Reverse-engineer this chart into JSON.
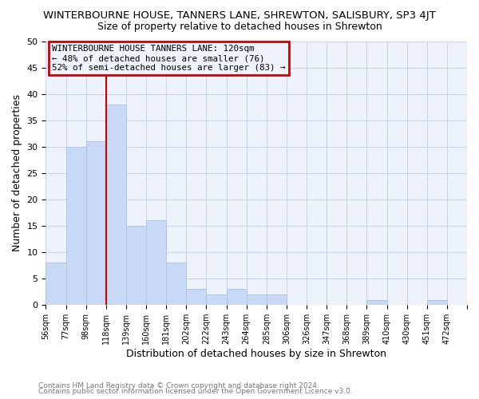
{
  "title": "WINTERBOURNE HOUSE, TANNERS LANE, SHREWTON, SALISBURY, SP3 4JT",
  "subtitle": "Size of property relative to detached houses in Shrewton",
  "xlabel": "Distribution of detached houses by size in Shrewton",
  "ylabel": "Number of detached properties",
  "footer_line1": "Contains HM Land Registry data © Crown copyright and database right 2024.",
  "footer_line2": "Contains public sector information licensed under the Open Government Licence v3.0.",
  "bin_labels": [
    "56sqm",
    "77sqm",
    "98sqm",
    "118sqm",
    "139sqm",
    "160sqm",
    "181sqm",
    "202sqm",
    "222sqm",
    "243sqm",
    "264sqm",
    "285sqm",
    "306sqm",
    "326sqm",
    "347sqm",
    "368sqm",
    "389sqm",
    "410sqm",
    "430sqm",
    "451sqm",
    "472sqm"
  ],
  "bar_values": [
    8,
    30,
    31,
    38,
    15,
    16,
    8,
    3,
    2,
    3,
    2,
    2,
    0,
    0,
    0,
    0,
    1,
    0,
    0,
    1,
    0
  ],
  "bar_color": "#c8d9f5",
  "bar_edge_color": "#aec6e8",
  "vline_color": "#cc0000",
  "ylim": [
    0,
    50
  ],
  "yticks": [
    0,
    5,
    10,
    15,
    20,
    25,
    30,
    35,
    40,
    45,
    50
  ],
  "annotation_line1": "WINTERBOURNE HOUSE TANNERS LANE: 120sqm",
  "annotation_line2": "← 48% of detached houses are smaller (76)",
  "annotation_line3": "52% of semi-detached houses are larger (83) →",
  "annotation_box_edge_color": "#cc0000",
  "grid_color": "#c8d4e8",
  "background_color": "#ffffff",
  "plot_bg_color": "#eef2fa"
}
